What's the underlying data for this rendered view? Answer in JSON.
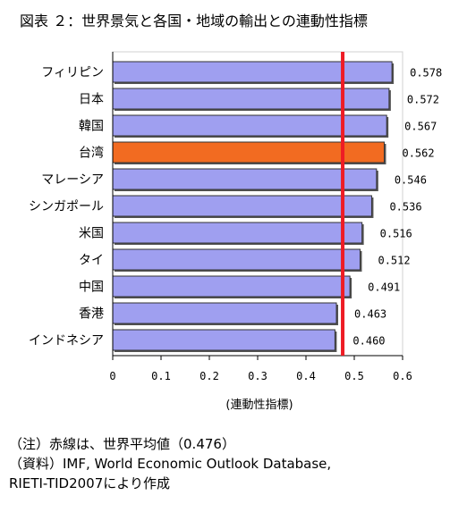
{
  "title": "図表 ２：世界景気と各国・地域の輸出との連動性指標",
  "notes": {
    "line1": "（注）赤線は、世界平均値（0.476）",
    "line2": "（資料）IMF, World Economic Outlook Database,",
    "line3": "RIETI-TID2007により作成"
  },
  "colors": {
    "bar": "#9f9ff0",
    "highlight_bar": "#f26b21",
    "average_line": "#ee1c25",
    "axis": "#000000"
  },
  "chart_data": {
    "type": "bar",
    "orientation": "horizontal",
    "categories": [
      "フィリピン",
      "日本",
      "韓国",
      "台湾",
      "マレーシア",
      "シンガポール",
      "米国",
      "タイ",
      "中国",
      "香港",
      "インドネシア"
    ],
    "values": [
      0.578,
      0.572,
      0.567,
      0.562,
      0.546,
      0.536,
      0.516,
      0.512,
      0.491,
      0.463,
      0.46
    ],
    "value_labels": [
      "0.578",
      "0.572",
      "0.567",
      "0.562",
      "0.546",
      "0.536",
      "0.516",
      "0.512",
      "0.491",
      "0.463",
      "0.460"
    ],
    "highlight_category": "台湾",
    "average_line": 0.476,
    "xlabel": "(連動性指標)",
    "xlim": [
      0,
      0.6
    ],
    "xticks": [
      "0",
      "0.1",
      "0.2",
      "0.3",
      "0.4",
      "0.5",
      "0.6"
    ],
    "grid": false,
    "legend": "none"
  }
}
